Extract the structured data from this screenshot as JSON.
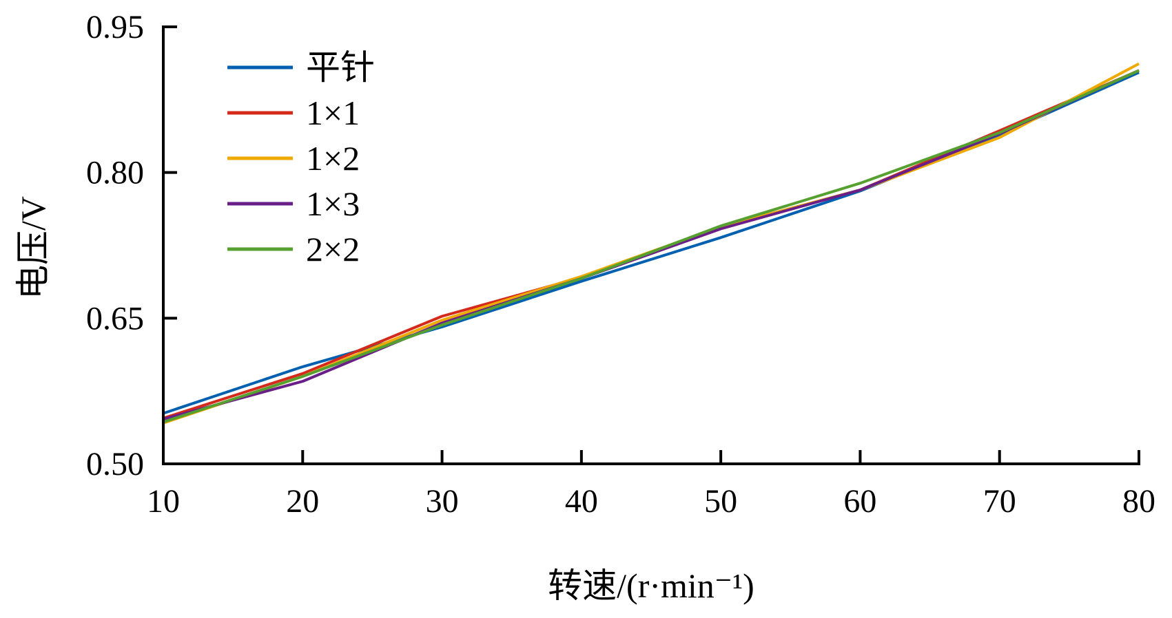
{
  "chart_data": {
    "type": "line",
    "title": "",
    "xlabel": "转速/(r·min⁻¹)",
    "ylabel": "电压/V",
    "xlim": [
      10,
      80
    ],
    "ylim": [
      0.5,
      0.95
    ],
    "xticks": [
      "10",
      "20",
      "30",
      "40",
      "50",
      "60",
      "70",
      "80"
    ],
    "yticks": [
      "0.50",
      "0.65",
      "0.80",
      "0.95"
    ],
    "grid": false,
    "legend_position": "top-left",
    "x": [
      10,
      20,
      30,
      40,
      50,
      60,
      70,
      80
    ],
    "series": [
      {
        "name": "平针",
        "color": "#0060b0",
        "values": [
          0.552,
          0.6,
          0.641,
          0.688,
          0.733,
          0.781,
          0.839,
          0.903
        ]
      },
      {
        "name": "1×1",
        "color": "#d42a1c",
        "values": [
          0.547,
          0.593,
          0.652,
          0.692,
          0.744,
          0.782,
          0.843,
          0.905
        ]
      },
      {
        "name": "1×2",
        "color": "#eeaa00",
        "values": [
          0.542,
          0.59,
          0.648,
          0.693,
          0.744,
          0.782,
          0.836,
          0.912
        ]
      },
      {
        "name": "1×3",
        "color": "#6a1e88",
        "values": [
          0.546,
          0.585,
          0.645,
          0.691,
          0.742,
          0.782,
          0.84,
          0.905
        ]
      },
      {
        "name": "2×2",
        "color": "#56a030",
        "values": [
          0.543,
          0.59,
          0.643,
          0.691,
          0.745,
          0.789,
          0.841,
          0.905
        ]
      }
    ]
  }
}
